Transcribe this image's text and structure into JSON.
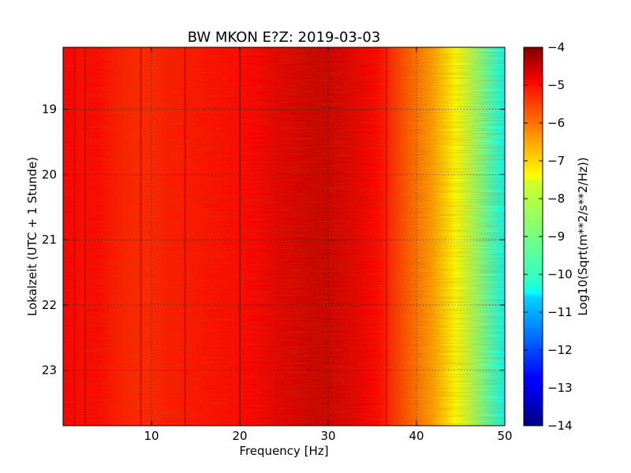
{
  "chart_data": {
    "type": "heatmap",
    "title": "BW MKON E?Z: 2019-03-03",
    "xlabel": "Frequency [Hz]",
    "ylabel": "Lokalzeit (UTC + 1 Stunde)",
    "xlim": [
      0,
      50
    ],
    "ylim": [
      18.05,
      23.85
    ],
    "y_inverted": true,
    "x_ticks": [
      10,
      20,
      30,
      40,
      50
    ],
    "x_tick_labels": [
      "10",
      "20",
      "30",
      "40",
      "50"
    ],
    "y_ticks": [
      19,
      20,
      21,
      22,
      23
    ],
    "y_tick_labels": [
      "19",
      "20",
      "21",
      "22",
      "23"
    ],
    "grid": true,
    "colorbar": {
      "label": "Log10(Sqrt(m**2/s**2/Hz))",
      "vmin": -14,
      "vmax": -4,
      "ticks": [
        -4,
        -5,
        -6,
        -7,
        -8,
        -9,
        -10,
        -11,
        -12,
        -13,
        -14
      ],
      "tick_labels": [
        "−4",
        "−5",
        "−6",
        "−7",
        "−8",
        "−9",
        "−10",
        "−11",
        "−12",
        "−13",
        "−14"
      ],
      "colormap": "jet"
    },
    "frequency_profile": {
      "frequency": [
        0,
        2,
        4,
        6,
        8,
        10,
        12,
        14,
        16,
        18,
        20,
        22,
        24,
        26,
        28,
        30,
        32,
        34,
        36,
        38,
        40,
        42,
        44,
        46,
        48,
        50
      ],
      "value": [
        -5.2,
        -5.3,
        -5.3,
        -5.5,
        -5.6,
        -5.6,
        -5.5,
        -5.45,
        -5.4,
        -5.35,
        -5.3,
        -5.2,
        -5.0,
        -4.9,
        -4.75,
        -4.75,
        -4.9,
        -5.1,
        -5.35,
        -5.9,
        -6.4,
        -6.9,
        -7.6,
        -8.4,
        -9.3,
        -10.2
      ]
    },
    "spectral_lines": [
      {
        "frequency": 1.3,
        "value": -4.8
      },
      {
        "frequency": 2.5,
        "value": -4.6
      },
      {
        "frequency": 8.8,
        "value": -4.8
      },
      {
        "frequency": 13.8,
        "value": -4.7
      },
      {
        "frequency": 20.0,
        "value": -4.4
      },
      {
        "frequency": 36.6,
        "value": -4.9
      }
    ]
  }
}
